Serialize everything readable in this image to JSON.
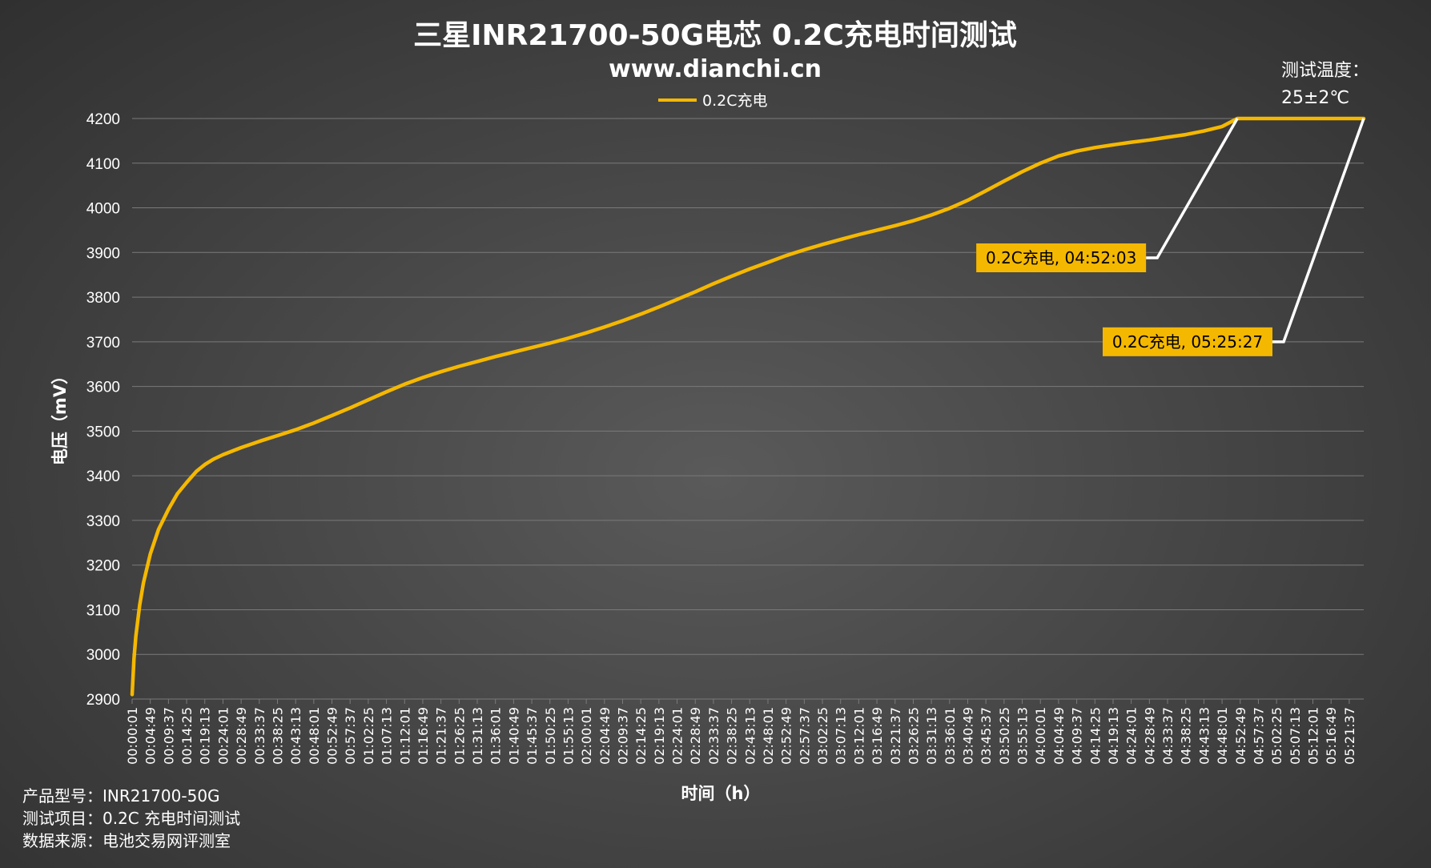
{
  "chart_data": {
    "type": "line",
    "title": "三星INR21700-50G电芯 0.2C充电时间测试",
    "subtitle": "www.dianchi.cn",
    "xlabel": "时间（h）",
    "ylabel": "电压（mV）",
    "ylim": [
      2900,
      4200
    ],
    "yticks": [
      2900,
      3000,
      3100,
      3200,
      3300,
      3400,
      3500,
      3600,
      3700,
      3800,
      3900,
      4000,
      4100,
      4200
    ],
    "legend_position": "top-center",
    "x_tick_labels": [
      "00:00:01",
      "00:04:49",
      "00:09:37",
      "00:14:25",
      "00:19:13",
      "00:24:01",
      "00:28:49",
      "00:33:37",
      "00:38:25",
      "00:43:13",
      "00:48:01",
      "00:52:49",
      "00:57:37",
      "01:02:25",
      "01:07:13",
      "01:12:01",
      "01:16:49",
      "01:21:37",
      "01:26:25",
      "01:31:13",
      "01:36:01",
      "01:40:49",
      "01:45:37",
      "01:50:25",
      "01:55:13",
      "02:00:01",
      "02:04:49",
      "02:09:37",
      "02:14:25",
      "02:19:13",
      "02:24:01",
      "02:28:49",
      "02:33:37",
      "02:38:25",
      "02:43:13",
      "02:48:01",
      "02:52:49",
      "02:57:37",
      "03:02:25",
      "03:07:13",
      "03:12:01",
      "03:16:49",
      "03:21:37",
      "03:26:25",
      "03:31:13",
      "03:36:01",
      "03:40:49",
      "03:45:37",
      "03:50:25",
      "03:55:13",
      "04:00:01",
      "04:04:49",
      "04:09:37",
      "04:14:25",
      "04:19:13",
      "04:24:01",
      "04:28:49",
      "04:33:37",
      "04:38:25",
      "04:43:13",
      "04:48:01",
      "04:52:49",
      "04:57:37",
      "05:02:25",
      "05:07:13",
      "05:12:01",
      "05:16:49",
      "05:21:37"
    ],
    "series": [
      {
        "name": "0.2C充电",
        "color": "#f5b800",
        "x": [
          "00:00:01",
          "00:00:30",
          "00:01:00",
          "00:02:00",
          "00:03:00",
          "00:04:49",
          "00:07:00",
          "00:09:37",
          "00:12:00",
          "00:14:25",
          "00:17:00",
          "00:19:13",
          "00:21:30",
          "00:24:01",
          "00:28:49",
          "00:33:37",
          "00:38:25",
          "00:43:13",
          "00:48:01",
          "00:52:49",
          "00:57:37",
          "01:02:25",
          "01:07:13",
          "01:12:01",
          "01:16:49",
          "01:21:37",
          "01:26:25",
          "01:31:13",
          "01:36:01",
          "01:40:49",
          "01:45:37",
          "01:50:25",
          "01:55:13",
          "02:00:01",
          "02:04:49",
          "02:09:37",
          "02:14:25",
          "02:19:13",
          "02:24:01",
          "02:28:49",
          "02:33:37",
          "02:38:25",
          "02:43:13",
          "02:48:01",
          "02:52:49",
          "02:57:37",
          "03:02:25",
          "03:07:13",
          "03:12:01",
          "03:16:49",
          "03:21:37",
          "03:26:25",
          "03:31:13",
          "03:36:01",
          "03:40:49",
          "03:45:37",
          "03:50:25",
          "03:55:13",
          "04:00:01",
          "04:04:49",
          "04:09:37",
          "04:14:25",
          "04:19:13",
          "04:24:01",
          "04:28:49",
          "04:33:37",
          "04:38:25",
          "04:43:13",
          "04:48:01",
          "04:52:03",
          "04:52:49",
          "04:57:37",
          "05:02:25",
          "05:07:13",
          "05:12:01",
          "05:16:49",
          "05:21:37",
          "05:25:27"
        ],
        "y": [
          2910,
          2990,
          3040,
          3110,
          3160,
          3225,
          3280,
          3325,
          3360,
          3385,
          3410,
          3425,
          3437,
          3447,
          3463,
          3477,
          3490,
          3503,
          3518,
          3535,
          3552,
          3570,
          3588,
          3605,
          3620,
          3633,
          3645,
          3656,
          3667,
          3677,
          3687,
          3697,
          3708,
          3720,
          3733,
          3747,
          3762,
          3778,
          3795,
          3812,
          3830,
          3847,
          3863,
          3878,
          3893,
          3906,
          3918,
          3929,
          3940,
          3950,
          3960,
          3971,
          3984,
          3999,
          4017,
          4038,
          4060,
          4081,
          4100,
          4116,
          4127,
          4135,
          4141,
          4147,
          4152,
          4158,
          4164,
          4172,
          4182,
          4200,
          4200,
          4200,
          4200,
          4200,
          4200,
          4200,
          4200,
          4200
        ]
      }
    ],
    "annotations": [
      {
        "text": "0.2C充电, 04:52:03",
        "x": "04:52:03",
        "y": 4200,
        "label_y": 3888
      },
      {
        "text": "0.2C充电, 05:25:27",
        "x": "05:25:27",
        "y": 4200,
        "label_y": 3700
      }
    ],
    "grid": true
  },
  "footer": {
    "line1": "产品型号：INR21700-50G",
    "line2": "测试项目：0.2C 充电时间测试",
    "line3": "数据来源：电池交易网评测室"
  },
  "test_temp": {
    "label": "测试温度：",
    "value": "25±2℃"
  },
  "colors": {
    "line": "#f5b800",
    "grid": "#7a7a7a",
    "text": "#ffffff",
    "callout_bg": "#f5b800",
    "callout_text": "#000000",
    "leader": "#ffffff"
  }
}
